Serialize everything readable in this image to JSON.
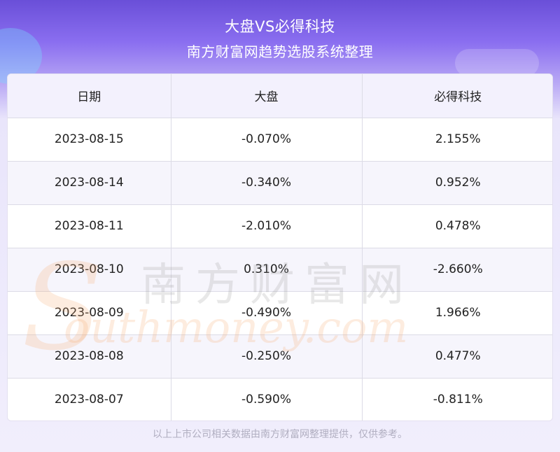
{
  "header": {
    "title_line1": "大盘VS必得科技",
    "title_line2": "南方财富网趋势选股系统整理"
  },
  "table": {
    "columns": [
      "日期",
      "大盘",
      "必得科技"
    ],
    "rows": [
      [
        "2023-08-15",
        "-0.070%",
        "2.155%"
      ],
      [
        "2023-08-14",
        "-0.340%",
        "0.952%"
      ],
      [
        "2023-08-11",
        "-2.010%",
        "0.478%"
      ],
      [
        "2023-08-10",
        "0.310%",
        "-2.660%"
      ],
      [
        "2023-08-09",
        "-0.490%",
        "1.966%"
      ],
      [
        "2023-08-08",
        "-0.250%",
        "0.477%"
      ],
      [
        "2023-08-07",
        "-0.590%",
        "-0.811%"
      ]
    ]
  },
  "watermark": {
    "cn": "南方财富网",
    "en": "outhmoney.com",
    "s": "S"
  },
  "footer": {
    "note": "以上上市公司相关数据由南方财富网整理提供，仅供参考。"
  }
}
